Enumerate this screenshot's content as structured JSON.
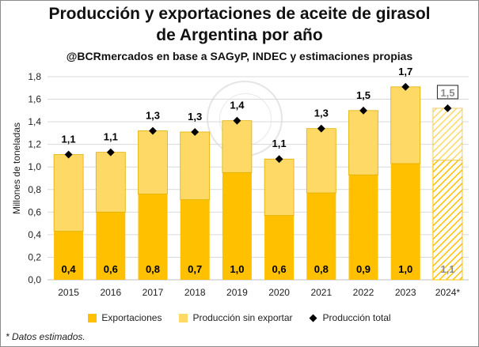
{
  "title_line1": "Producción y exportaciones de aceite de girasol",
  "title_line2": "de Argentina por año",
  "subtitle": "@BCRmercados en base a SAGyP, INDEC y estimaciones propias",
  "footnote": "* Datos estimados.",
  "watermark_text": "BOLSA DE COMERCIO DE ROSARIO",
  "colors": {
    "exportaciones": "#FFC000",
    "sin_exportar": "#FFD966",
    "total_marker": "#000000",
    "estimated_label": "#8c8c8c"
  },
  "chart_data": {
    "type": "bar",
    "stacked": true,
    "categories": [
      "2015",
      "2016",
      "2017",
      "2018",
      "2019",
      "2020",
      "2021",
      "2022",
      "2023",
      "2024*"
    ],
    "estimated_categories": [
      "2024*"
    ],
    "ylabel": "Millones de toneladas",
    "ylim": [
      0,
      1.8
    ],
    "yticks": [
      "0,0",
      "0,2",
      "0,4",
      "0,6",
      "0,8",
      "1,0",
      "1,2",
      "1,4",
      "1,6",
      "1,8"
    ],
    "grid": true,
    "legend_position": "bottom",
    "series": [
      {
        "name": "Exportaciones",
        "kind": "bar",
        "values": [
          0.43,
          0.6,
          0.76,
          0.71,
          0.95,
          0.57,
          0.77,
          0.93,
          1.03,
          1.06
        ],
        "labels": [
          "0,4",
          "0,6",
          "0,8",
          "0,7",
          "1,0",
          "0,6",
          "0,8",
          "0,9",
          "1,0",
          "1,1"
        ]
      },
      {
        "name": "Producción sin exportar",
        "kind": "bar",
        "values": [
          0.68,
          0.53,
          0.56,
          0.6,
          0.46,
          0.5,
          0.57,
          0.57,
          0.68,
          0.46
        ]
      },
      {
        "name": "Producción total",
        "kind": "marker",
        "values": [
          1.11,
          1.13,
          1.32,
          1.31,
          1.41,
          1.07,
          1.34,
          1.5,
          1.71,
          1.52
        ],
        "labels": [
          "1,1",
          "1,1",
          "1,3",
          "1,3",
          "1,4",
          "1,1",
          "1,3",
          "1,5",
          "1,7",
          "1,5"
        ]
      }
    ]
  }
}
